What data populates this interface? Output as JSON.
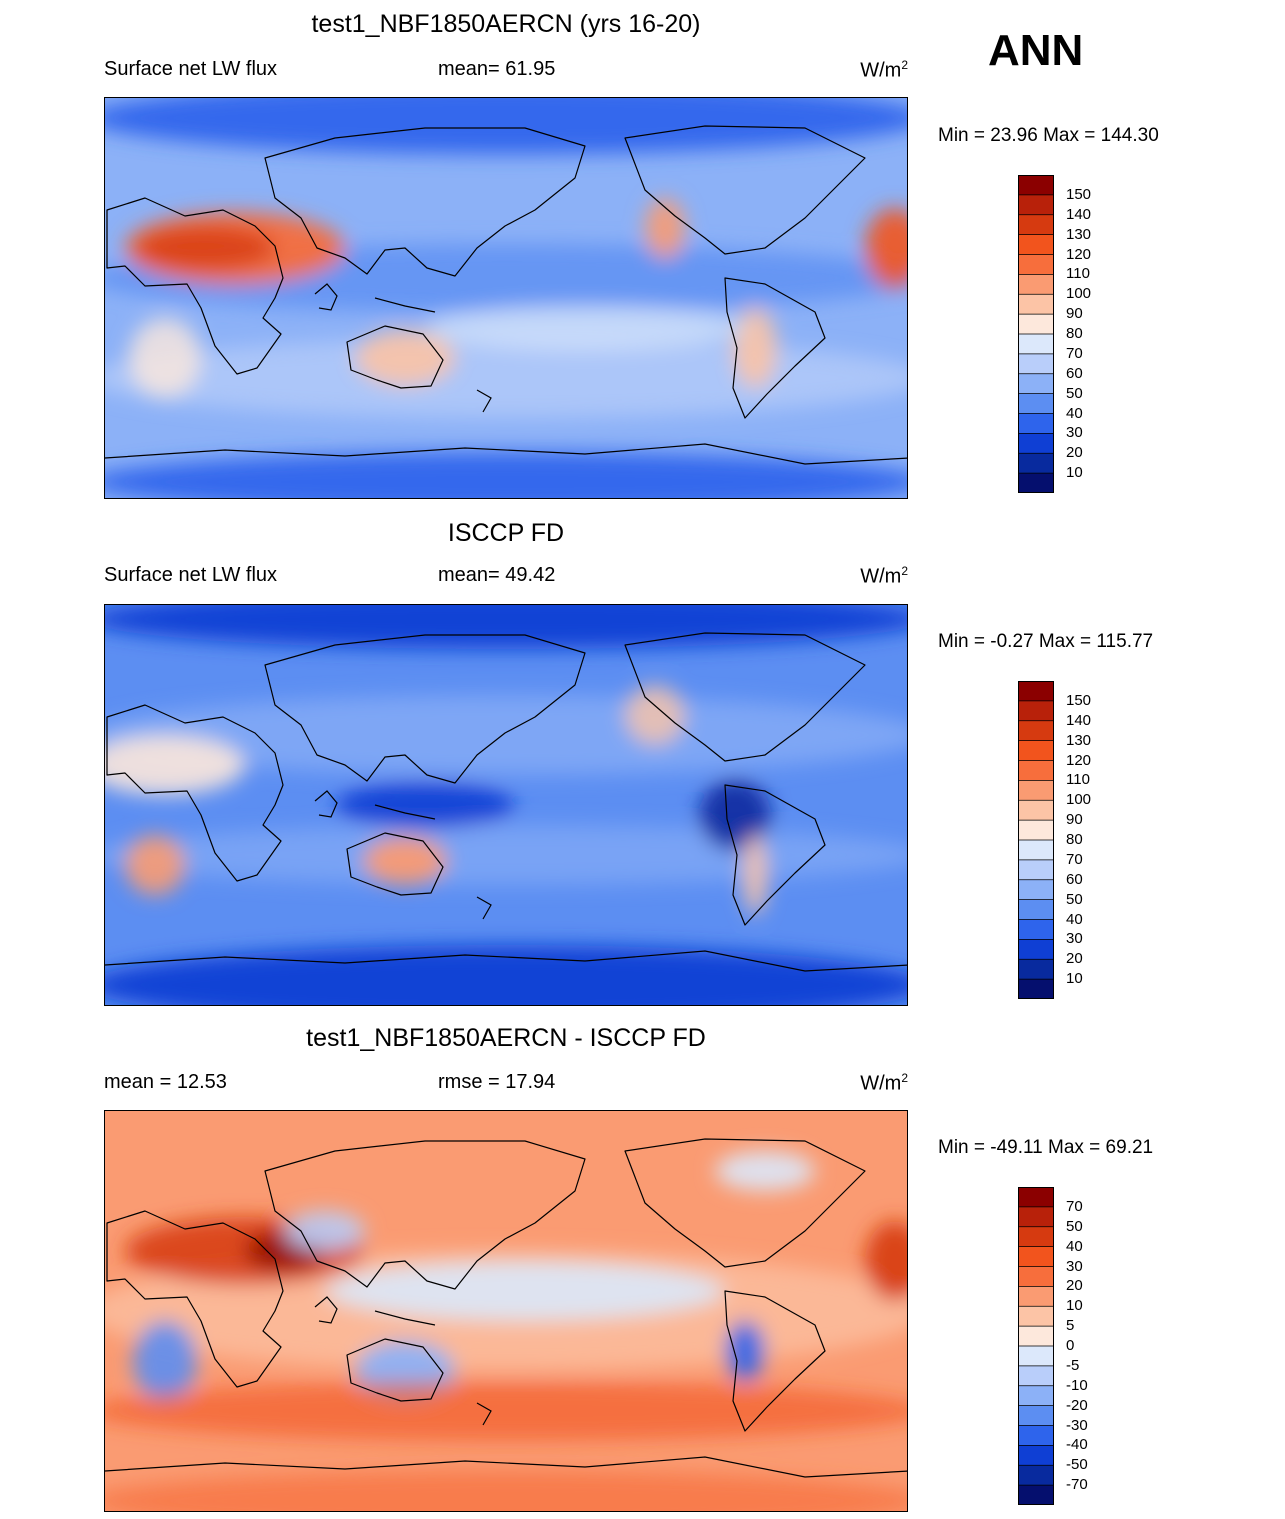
{
  "season": "ANN",
  "units_main": "W/m",
  "units_exp": "2",
  "panels": [
    {
      "title": "test1_NBF1850AERCN (yrs 16-20)",
      "left_label": "Surface net LW flux",
      "center_label": "mean=  61.95",
      "minmax": "Min =  23.96 Max = 144.30",
      "kind": "model"
    },
    {
      "title": "ISCCP FD",
      "left_label": "Surface net LW flux",
      "center_label": "mean=  49.42",
      "minmax": "Min =  -0.27 Max = 115.77",
      "kind": "obs"
    },
    {
      "title": "test1_NBF1850AERCN - ISCCP FD",
      "left_label": "mean =  12.53",
      "center_label": "rmse =  17.94",
      "minmax": "Min = -49.11 Max =  69.21",
      "kind": "diff"
    }
  ],
  "colorbars": {
    "abs": {
      "labels": [
        "150",
        "140",
        "130",
        "120",
        "110",
        "100",
        "90",
        "80",
        "70",
        "60",
        "50",
        "40",
        "30",
        "20",
        "10"
      ],
      "colors": [
        "#8b0000",
        "#b8210a",
        "#d63a10",
        "#f2541d",
        "#f76e3c",
        "#fa9b72",
        "#fcc4a6",
        "#fde8dc",
        "#dce8fb",
        "#b9cefa",
        "#8cb1f7",
        "#5c8ef2",
        "#2e64ec",
        "#0f3fd4",
        "#082a9e",
        "#050f6e"
      ]
    },
    "diff": {
      "labels": [
        "70",
        "50",
        "40",
        "30",
        "20",
        "10",
        "5",
        "0",
        "-5",
        "-10",
        "-20",
        "-30",
        "-40",
        "-50",
        "-70"
      ],
      "colors": [
        "#8b0000",
        "#b8210a",
        "#d63a10",
        "#f2541d",
        "#f76e3c",
        "#fa9b72",
        "#fcc4a6",
        "#fde8dc",
        "#dce8fb",
        "#b9cefa",
        "#8cb1f7",
        "#5c8ef2",
        "#2e64ec",
        "#0f3fd4",
        "#082a9e",
        "#050f6e"
      ]
    }
  },
  "chart_data": [
    {
      "type": "heatmap",
      "title": "test1_NBF1850AERCN (yrs 16-20)",
      "variable": "Surface net LW flux",
      "mean": 61.95,
      "min": 23.96,
      "max": 144.3,
      "contour_levels": [
        10,
        20,
        30,
        40,
        50,
        60,
        70,
        80,
        90,
        100,
        110,
        120,
        130,
        140,
        150
      ]
    },
    {
      "type": "heatmap",
      "title": "ISCCP FD",
      "variable": "Surface net LW flux",
      "mean": 49.42,
      "min": -0.27,
      "max": 115.77,
      "contour_levels": [
        10,
        20,
        30,
        40,
        50,
        60,
        70,
        80,
        90,
        100,
        110,
        120,
        130,
        140,
        150
      ]
    },
    {
      "type": "heatmap",
      "title": "test1_NBF1850AERCN - ISCCP FD",
      "mean": 12.53,
      "rmse": 17.94,
      "min": -49.11,
      "max": 69.21,
      "contour_levels": [
        -70,
        -50,
        -40,
        -30,
        -20,
        -10,
        -5,
        0,
        5,
        10,
        20,
        30,
        40,
        50,
        70
      ]
    }
  ]
}
